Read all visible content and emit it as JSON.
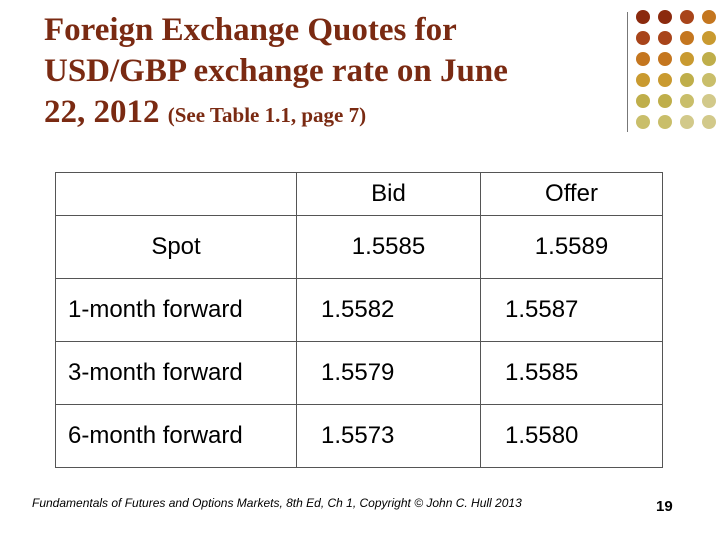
{
  "title": {
    "lines": [
      "Foreign Exchange Quotes for",
      "USD/GBP exchange rate on June",
      "22, 2012"
    ],
    "note": "(See Table 1.1, page 7)"
  },
  "table": {
    "header": [
      "Bid",
      "Offer"
    ],
    "rows": [
      [
        "Spot",
        "1.5585",
        "1.5589"
      ],
      [
        "1-month forward",
        "1.5582",
        "1.5587"
      ],
      [
        "3-month forward",
        "1.5579",
        "1.5585"
      ],
      [
        "6-month forward",
        "1.5573",
        "1.5580"
      ]
    ]
  },
  "footer": {
    "citation": "Fundamentals of Futures and Options Markets, 8th Ed, Ch 1, Copyright © John C. Hull 2013",
    "page": "19"
  }
}
